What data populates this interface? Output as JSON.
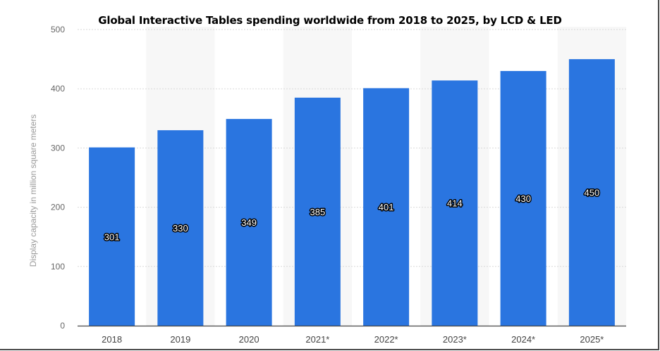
{
  "chart_data": {
    "type": "bar",
    "title": "Global Interactive Tables spending worldwide from 2018 to 2025, by LCD & LED",
    "xlabel": "",
    "ylabel": "Display capacity in million square meters",
    "categories": [
      "2018",
      "2019",
      "2020",
      "2021*",
      "2022*",
      "2023*",
      "2024*",
      "2025*"
    ],
    "values": [
      301,
      330,
      349,
      385,
      401,
      414,
      430,
      450
    ],
    "ylim": [
      0,
      500
    ],
    "yticks": [
      0,
      100,
      200,
      300,
      400,
      500
    ],
    "grid": true,
    "bar_color": "#2a75e0",
    "band_color": "#f7f7f7"
  }
}
